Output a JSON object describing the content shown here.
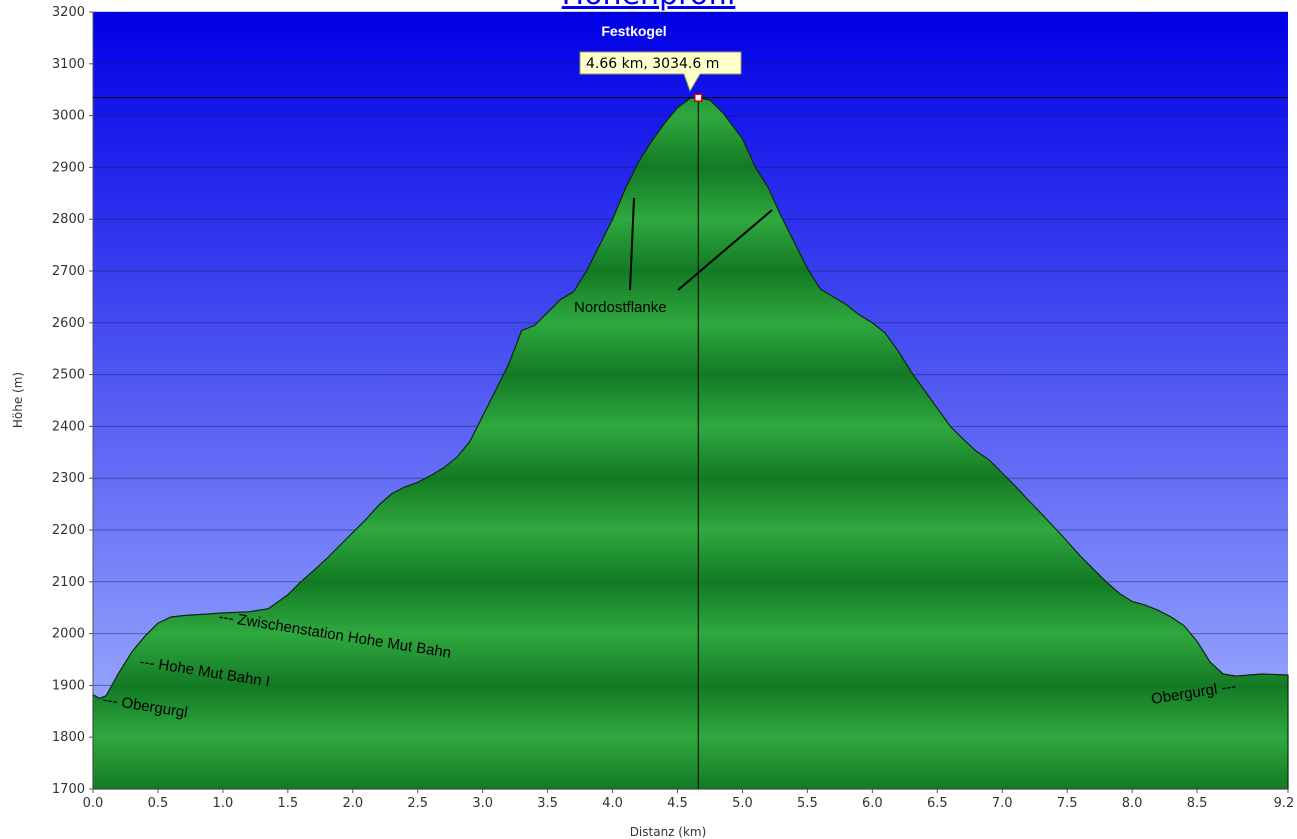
{
  "page": {
    "title_link": "Höhenprofil"
  },
  "chart_data": {
    "type": "area",
    "xlabel": "Distanz  (km)",
    "ylabel": "Höhe (m)",
    "xlim": [
      0,
      9.2
    ],
    "ylim": [
      1700,
      3200
    ],
    "x_ticks": [
      "0.0",
      "0.5",
      "1.0",
      "1.5",
      "2.0",
      "2.5",
      "3.0",
      "3.5",
      "4.0",
      "4.5",
      "5.0",
      "5.5",
      "6.0",
      "6.5",
      "7.0",
      "7.5",
      "8.0",
      "8.5",
      "9.2"
    ],
    "y_ticks": [
      "1700",
      "1800",
      "1900",
      "2000",
      "2100",
      "2200",
      "2300",
      "2400",
      "2500",
      "2600",
      "2700",
      "2800",
      "2900",
      "3000",
      "3100",
      "3200"
    ],
    "grid": true,
    "series": [
      {
        "x": [
          0.0,
          0.05,
          0.1,
          0.2,
          0.3,
          0.4,
          0.5,
          0.6,
          0.7,
          0.9,
          1.0,
          1.2,
          1.35,
          1.5,
          1.6,
          1.7,
          1.8,
          1.9,
          2.0,
          2.1,
          2.2,
          2.3,
          2.4,
          2.5,
          2.6,
          2.7,
          2.8,
          2.9,
          3.0,
          3.1,
          3.2,
          3.3,
          3.4,
          3.5,
          3.6,
          3.7,
          3.8,
          3.9,
          4.0,
          4.1,
          4.2,
          4.3,
          4.4,
          4.5,
          4.6,
          4.66,
          4.75,
          4.85,
          5.0,
          5.1,
          5.2,
          5.3,
          5.4,
          5.5,
          5.6,
          5.7,
          5.8,
          5.9,
          6.0,
          6.1,
          6.2,
          6.3,
          6.4,
          6.5,
          6.6,
          6.7,
          6.8,
          6.9,
          7.0,
          7.1,
          7.2,
          7.3,
          7.4,
          7.5,
          7.6,
          7.7,
          7.8,
          7.9,
          8.0,
          8.1,
          8.2,
          8.3,
          8.4,
          8.5,
          8.6,
          8.7,
          8.8,
          8.9,
          9.0,
          9.2
        ],
        "y": [
          1882,
          1875,
          1880,
          1925,
          1965,
          1995,
          2020,
          2032,
          2035,
          2038,
          2040,
          2042,
          2048,
          2075,
          2100,
          2122,
          2145,
          2170,
          2195,
          2220,
          2248,
          2270,
          2283,
          2292,
          2305,
          2320,
          2340,
          2370,
          2420,
          2470,
          2520,
          2585,
          2595,
          2620,
          2645,
          2660,
          2700,
          2750,
          2800,
          2860,
          2910,
          2950,
          2985,
          3015,
          3034,
          3034.6,
          3030,
          3005,
          2955,
          2900,
          2860,
          2805,
          2755,
          2705,
          2665,
          2650,
          2635,
          2615,
          2600,
          2580,
          2545,
          2505,
          2470,
          2435,
          2400,
          2375,
          2352,
          2335,
          2310,
          2285,
          2258,
          2232,
          2205,
          2178,
          2150,
          2125,
          2100,
          2078,
          2062,
          2055,
          2045,
          2032,
          2015,
          1985,
          1945,
          1922,
          1918,
          1920,
          1922,
          1920
        ]
      }
    ],
    "peak": {
      "name": "Festkogel",
      "x": 4.66,
      "y": 3034.6,
      "tooltip": "4.66 km, 3034.6 m"
    },
    "annotations": [
      {
        "text": "Nordostflanke"
      },
      {
        "text": "--- Zwischenstation Hohe Mut Bahn"
      },
      {
        "text": "--- Hohe Mut Bahn I"
      },
      {
        "text": "--- Obergurgl"
      },
      {
        "text": "Obergurgl ---"
      }
    ],
    "colors": {
      "sky_top": "#0000e8",
      "sky_bottom": "#a4b4ff",
      "fill_light": "#2fa83f",
      "fill_dark": "#137a24",
      "outline": "#0b2a0b"
    }
  }
}
